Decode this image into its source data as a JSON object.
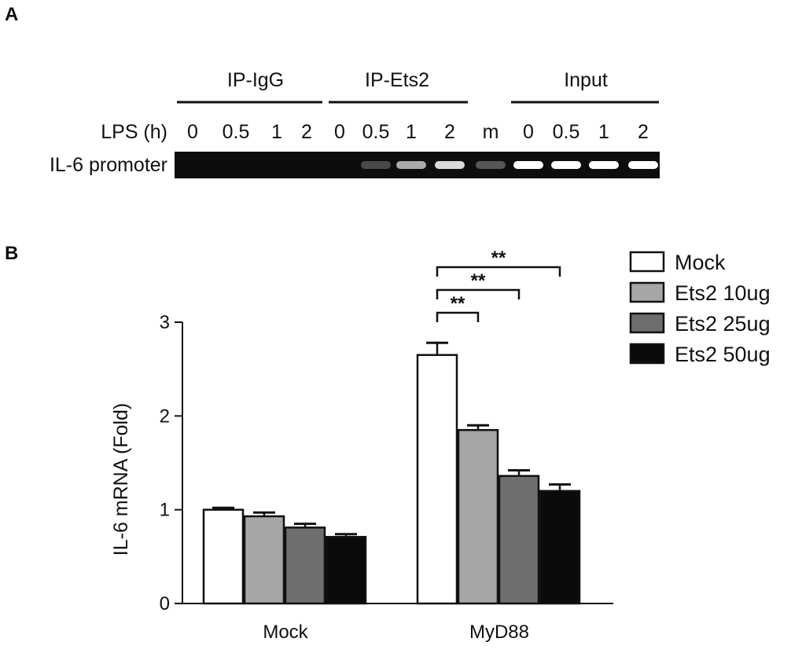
{
  "panels": {
    "a_letter": "A",
    "b_letter": "B"
  },
  "gel": {
    "groups": [
      "IP-IgG",
      "IP-Ets2",
      "Input"
    ],
    "row_label": "LPS (h)",
    "lanes": [
      {
        "label": "0",
        "intensity": 0
      },
      {
        "label": "0.5",
        "intensity": 0
      },
      {
        "label": "1",
        "intensity": 0
      },
      {
        "label": "2",
        "intensity": 0
      },
      {
        "label": "0",
        "intensity": 0
      },
      {
        "label": "0.5",
        "intensity": 0.25
      },
      {
        "label": "1",
        "intensity": 0.65
      },
      {
        "label": "2",
        "intensity": 0.85
      },
      {
        "label": "m",
        "intensity": 0.3
      },
      {
        "label": "0",
        "intensity": 1
      },
      {
        "label": "0.5",
        "intensity": 1
      },
      {
        "label": "1",
        "intensity": 1
      },
      {
        "label": "2",
        "intensity": 1
      }
    ],
    "band_label": "IL-6 promoter"
  },
  "chart_data": {
    "type": "bar",
    "categories": [
      "Mock",
      "MyD88"
    ],
    "series": [
      {
        "name": "Mock",
        "values": [
          1.0,
          2.65
        ],
        "errors": [
          0.02,
          0.13
        ],
        "color": "#ffffff"
      },
      {
        "name": "Ets2 10ug",
        "values": [
          0.93,
          1.85
        ],
        "errors": [
          0.04,
          0.05
        ],
        "color": "#a6a6a6"
      },
      {
        "name": "Ets2 25ug",
        "values": [
          0.81,
          1.36
        ],
        "errors": [
          0.04,
          0.06
        ],
        "color": "#6e6e6e"
      },
      {
        "name": "Ets2 50ug",
        "values": [
          0.71,
          1.2
        ],
        "errors": [
          0.03,
          0.07
        ],
        "color": "#0a0a0a"
      }
    ],
    "ylabel": "IL-6 mRNA (Fold)",
    "ylim": [
      0,
      3
    ],
    "yticks": [
      "0",
      "1",
      "2",
      "3"
    ],
    "legend_position": "top-right",
    "significance": [
      {
        "category": "MyD88",
        "from_series": 0,
        "to_series": 1,
        "label": "**"
      },
      {
        "category": "MyD88",
        "from_series": 0,
        "to_series": 2,
        "label": "**"
      },
      {
        "category": "MyD88",
        "from_series": 0,
        "to_series": 3,
        "label": "**"
      }
    ]
  }
}
